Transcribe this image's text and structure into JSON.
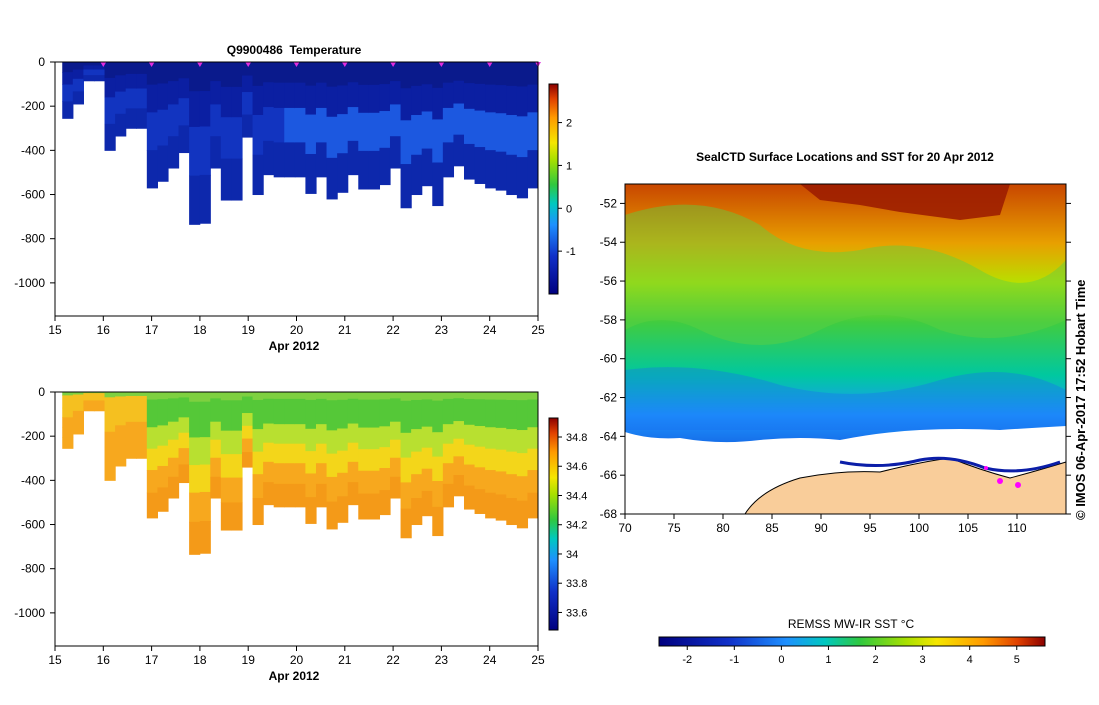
{
  "credit": "© IMOS 06-Apr-2017 17:52 Hobart Time",
  "chart_data": [
    {
      "type": "heatmap",
      "title": "Q9900486  Temperature",
      "xlabel": "Apr 2012",
      "ylabel": "",
      "xlim": [
        15,
        25
      ],
      "ylim": [
        -1150,
        0
      ],
      "x_ticks": [
        "15",
        "16",
        "17",
        "18",
        "19",
        "20",
        "21",
        "22",
        "23",
        "24",
        "25"
      ],
      "y_ticks": [
        "0",
        "-200",
        "-400",
        "-600",
        "-800",
        "-1000"
      ],
      "profile_markers_x": [
        16,
        17,
        18,
        19,
        20,
        21,
        22,
        23,
        24,
        25
      ],
      "profile_depth_m": [
        -255,
        -190,
        -85,
        -85,
        -400,
        -335,
        -300,
        -300,
        -570,
        -540,
        -480,
        -410,
        -735,
        -730,
        -480,
        -625,
        -625,
        -340,
        -600,
        -510,
        -520,
        -520,
        -520,
        -595,
        -520,
        -620,
        -590,
        -510,
        -575,
        -575,
        -555,
        -480,
        -660,
        -600,
        -560,
        -650,
        -520,
        -470,
        -530,
        -550,
        -570,
        -580,
        -600,
        -615,
        -570
      ],
      "colorbar": {
        "min": -2.0,
        "max": 2.9,
        "ticks": [
          "2",
          "1",
          "0",
          "-1"
        ]
      }
    },
    {
      "type": "heatmap",
      "title": "",
      "xlabel": "Apr 2012",
      "ylabel": "",
      "xlim": [
        15,
        25
      ],
      "ylim": [
        -1150,
        0
      ],
      "x_ticks": [
        "15",
        "16",
        "17",
        "18",
        "19",
        "20",
        "21",
        "22",
        "23",
        "24",
        "25"
      ],
      "y_ticks": [
        "0",
        "-200",
        "-400",
        "-600",
        "-800",
        "-1000"
      ],
      "colorbar": {
        "min": 33.48,
        "max": 34.93,
        "ticks": [
          "34.8",
          "34.6",
          "34.4",
          "34.2",
          "34",
          "33.8",
          "33.6"
        ]
      }
    },
    {
      "type": "heatmap",
      "title": "SealCTD Surface Locations and SST for 20 Apr 2012",
      "xlabel": "",
      "ylabel": "",
      "xlim": [
        70,
        115
      ],
      "ylim": [
        -68,
        -51
      ],
      "x_ticks": [
        "70",
        "75",
        "80",
        "85",
        "90",
        "95",
        "100",
        "105",
        "110"
      ],
      "y_ticks": [
        "-52",
        "-54",
        "-56",
        "-58",
        "-60",
        "-62",
        "-64",
        "-66",
        "-68"
      ],
      "colorbar": {
        "label": "REMSS MW-IR SST °C",
        "min": -2.6,
        "max": 5.6,
        "ticks": [
          "-2",
          "-1",
          "0",
          "1",
          "2",
          "3",
          "4",
          "5"
        ]
      }
    }
  ]
}
